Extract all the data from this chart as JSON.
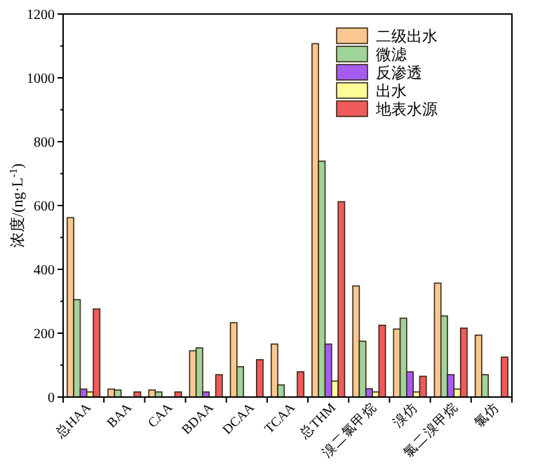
{
  "chart_data": {
    "type": "bar",
    "ylabel": "浓度/(ng·L$^{-1}$)",
    "categories": [
      "总HAA",
      "BAA",
      "CAA",
      "BDAA",
      "DCAA",
      "TCAA",
      "总THM",
      "溴二氯甲烷",
      "溴仿",
      "氯二溴甲烷",
      "氯仿"
    ],
    "series": [
      {
        "name": "二级出水",
        "color": "#f9c78f",
        "values": [
          562,
          25,
          22,
          145,
          233,
          166,
          1107,
          348,
          213,
          357,
          194
        ]
      },
      {
        "name": "微滤",
        "color": "#9fd49b",
        "values": [
          305,
          22,
          16,
          154,
          95,
          38,
          739,
          175,
          247,
          254,
          70
        ]
      },
      {
        "name": "反渗透",
        "color": "#a55cf0",
        "values": [
          25,
          null,
          null,
          16,
          null,
          null,
          166,
          26,
          79,
          70,
          null
        ]
      },
      {
        "name": "出水",
        "color": "#fdfd98",
        "values": [
          16,
          null,
          null,
          null,
          null,
          null,
          50,
          16,
          16,
          25,
          null
        ]
      },
      {
        "name": "地表水源",
        "color": "#ef5a5a",
        "values": [
          276,
          16,
          16,
          70,
          117,
          79,
          612,
          225,
          65,
          216,
          125
        ]
      }
    ],
    "ylim": [
      0,
      1200
    ],
    "yticks": [
      0,
      200,
      400,
      600,
      800,
      1000,
      1200
    ],
    "grid": false,
    "legend": "top right"
  }
}
